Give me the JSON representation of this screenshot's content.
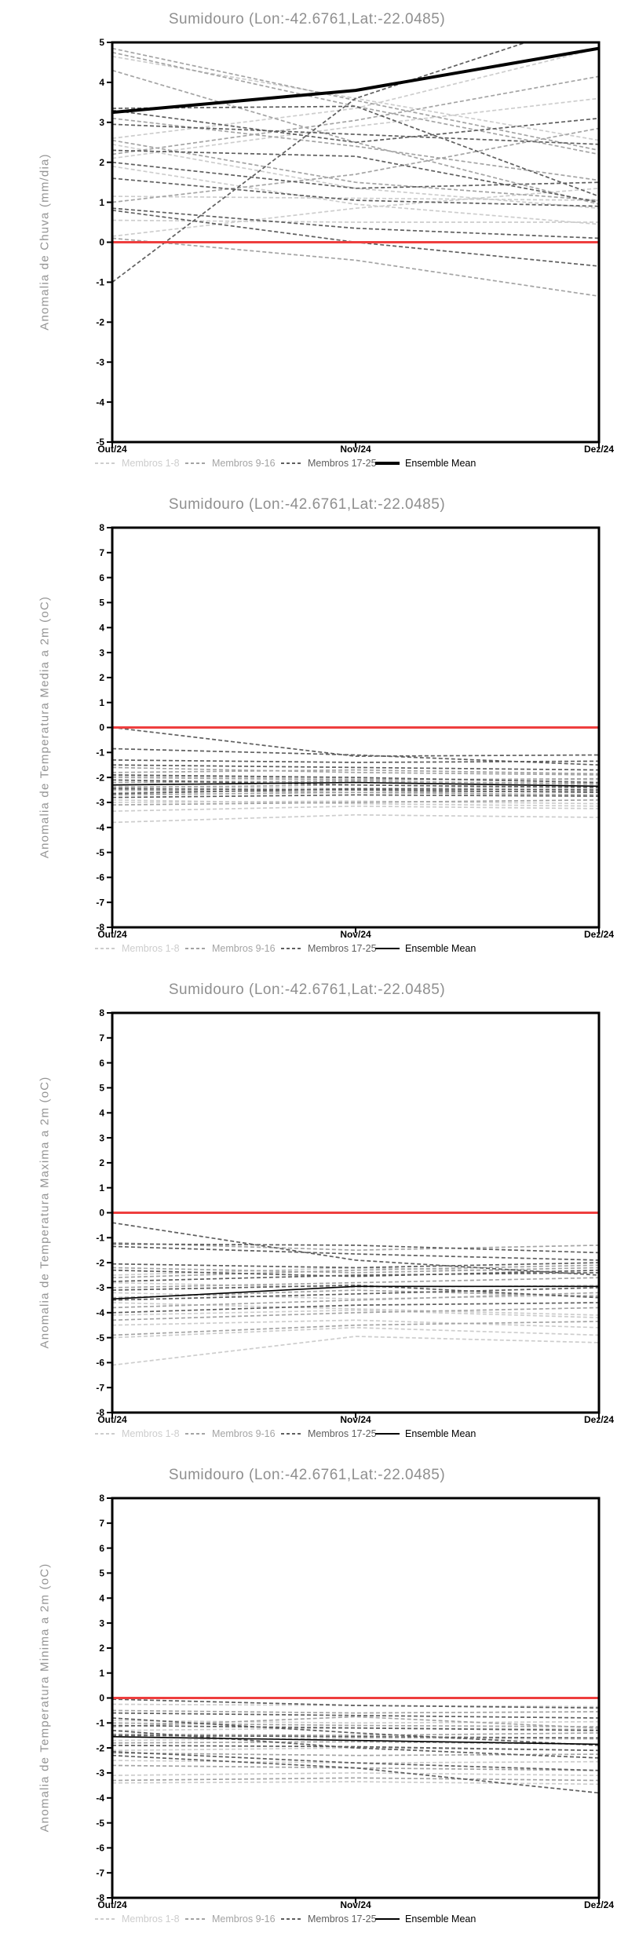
{
  "page_title": "Sumidouro (Lon:-42.6761,Lat:-22.0485)",
  "colors": {
    "members_1_8": "#cdcdcd",
    "members_9_16": "#a4a4a4",
    "members_17_25": "#5f5f5f",
    "ensemble_mean": "#000000",
    "zero_line": "#ee3e3e",
    "title_text": "#8f8f8f",
    "axis_label_text": "#949494",
    "tick_text": "#000000"
  },
  "legend": {
    "items": [
      {
        "label": "Membros 1-8",
        "color": "#cdcdcd",
        "style": "dashed"
      },
      {
        "label": "Membros 9-16",
        "color": "#a4a4a4",
        "style": "dashed"
      },
      {
        "label": "Membros 17-25",
        "color": "#5f5f5f",
        "style": "dashed"
      },
      {
        "label": "Ensemble Mean",
        "color": "#000000",
        "style": "solid"
      }
    ]
  },
  "chart_data": [
    {
      "type": "line",
      "title": "Sumidouro (Lon:-42.6761,Lat:-22.0485)",
      "ylabel": "Anomalia de Chuva (mm/dia)",
      "ylim": [
        -5,
        5
      ],
      "ytick_step": 1,
      "categories": [
        "Out/24",
        "Nov/24",
        "Dez/24"
      ],
      "zero_line": 0,
      "grid": false,
      "legend_position": "bottom",
      "series": [
        {
          "name": "Membros 1-8",
          "style": "dashed",
          "color": "#cdcdcd",
          "width": 1.7,
          "lines": [
            [
              4.65,
              3.6,
              2.55
            ],
            [
              2.6,
              3.35,
              4.85
            ],
            [
              2.1,
              2.9,
              3.6
            ],
            [
              2.45,
              1.35,
              0.85
            ],
            [
              1.15,
              1.1,
              1.05
            ],
            [
              1.9,
              0.95,
              0.45
            ],
            [
              0.55,
              0.5,
              0.5
            ],
            [
              0.15,
              0.85,
              1.35
            ]
          ]
        },
        {
          "name": "Membros 9-16",
          "style": "dashed",
          "color": "#a4a4a4",
          "width": 1.7,
          "lines": [
            [
              4.85,
              3.55,
              2.3
            ],
            [
              4.75,
              3.4,
              2.2
            ],
            [
              4.3,
              2.5,
              0.95
            ],
            [
              3.1,
              2.4,
              1.55
            ],
            [
              2.2,
              3.05,
              4.15
            ],
            [
              1.0,
              1.7,
              2.85
            ],
            [
              2.55,
              1.5,
              1.05
            ],
            [
              0.1,
              -0.45,
              -1.35
            ]
          ]
        },
        {
          "name": "Membros 17-25",
          "style": "dashed",
          "color": "#5f5f5f",
          "width": 1.7,
          "lines": [
            [
              -1.0,
              3.6,
              5.6
            ],
            [
              3.35,
              3.4,
              1.15
            ],
            [
              2.95,
              2.7,
              2.45
            ],
            [
              2.3,
              2.15,
              1.0
            ],
            [
              3.3,
              2.5,
              3.1
            ],
            [
              0.85,
              0.35,
              0.1
            ],
            [
              1.6,
              1.05,
              0.9
            ],
            [
              0.8,
              0.0,
              -0.6
            ],
            [
              2.0,
              1.35,
              1.5
            ]
          ]
        },
        {
          "name": "Ensemble Mean",
          "style": "solid",
          "color": "#000000",
          "width": 4,
          "lines": [
            [
              3.25,
              3.8,
              4.85
            ]
          ]
        }
      ]
    },
    {
      "type": "line",
      "title": "Sumidouro (Lon:-42.6761,Lat:-22.0485)",
      "ylabel": "Anomalia de Temperatura Media a 2m (oC)",
      "ylim": [
        -8,
        8
      ],
      "ytick_step": 1,
      "categories": [
        "Out/24",
        "Nov/24",
        "Dez/24"
      ],
      "zero_line": 0,
      "grid": false,
      "legend_position": "bottom",
      "series": [
        {
          "name": "Membros 1-8",
          "style": "dashed",
          "color": "#cdcdcd",
          "width": 1.7,
          "lines": [
            [
              -2.1,
              -2.2,
              -2.3
            ],
            [
              -2.6,
              -2.5,
              -2.45
            ],
            [
              -3.0,
              -2.95,
              -3.05
            ],
            [
              -3.35,
              -3.15,
              -3.25
            ],
            [
              -3.8,
              -3.5,
              -3.6
            ],
            [
              -1.95,
              -2.05,
              -2.1
            ],
            [
              -2.35,
              -2.45,
              -2.35
            ],
            [
              -2.9,
              -3.05,
              -3.15
            ]
          ]
        },
        {
          "name": "Membros 9-16",
          "style": "dashed",
          "color": "#a4a4a4",
          "width": 1.7,
          "lines": [
            [
              -1.6,
              -1.8,
              -1.9
            ],
            [
              -2.0,
              -2.1,
              -2.05
            ],
            [
              -2.4,
              -2.3,
              -2.4
            ],
            [
              -2.7,
              -2.6,
              -2.7
            ],
            [
              -3.1,
              -3.0,
              -2.9
            ],
            [
              -1.8,
              -1.7,
              -1.85
            ],
            [
              -2.5,
              -2.6,
              -2.55
            ],
            [
              -2.2,
              -2.15,
              -2.25
            ]
          ]
        },
        {
          "name": "Membros 17-25",
          "style": "dashed",
          "color": "#5f5f5f",
          "width": 1.7,
          "lines": [
            [
              0.0,
              -1.15,
              -1.1
            ],
            [
              -0.85,
              -1.1,
              -1.5
            ],
            [
              -1.3,
              -1.4,
              -1.35
            ],
            [
              -1.5,
              -1.6,
              -1.7
            ],
            [
              -1.9,
              -2.0,
              -2.2
            ],
            [
              -2.1,
              -2.3,
              -2.4
            ],
            [
              -2.45,
              -2.5,
              -2.6
            ],
            [
              -2.65,
              -2.45,
              -2.5
            ],
            [
              -2.8,
              -2.7,
              -2.75
            ]
          ]
        },
        {
          "name": "Ensemble Mean",
          "style": "solid",
          "color": "#000000",
          "width": 1.6,
          "lines": [
            [
              -2.3,
              -2.2,
              -2.35
            ]
          ]
        }
      ]
    },
    {
      "type": "line",
      "title": "Sumidouro (Lon:-42.6761,Lat:-22.0485)",
      "ylabel": "Anomalia de Temperatura Maxima a 2m (oC)",
      "ylim": [
        -8,
        8
      ],
      "ytick_step": 1,
      "categories": [
        "Out/24",
        "Nov/24",
        "Dez/24"
      ],
      "zero_line": 0,
      "grid": false,
      "legend_position": "bottom",
      "series": [
        {
          "name": "Membros 1-8",
          "style": "dashed",
          "color": "#cdcdcd",
          "width": 1.7,
          "lines": [
            [
              -2.5,
              -2.2,
              -2.4
            ],
            [
              -3.2,
              -3.45,
              -3.3
            ],
            [
              -4.5,
              -4.3,
              -4.6
            ],
            [
              -5.0,
              -4.6,
              -4.9
            ],
            [
              -6.1,
              -4.95,
              -5.2
            ],
            [
              -3.6,
              -3.85,
              -4.1
            ],
            [
              -2.8,
              -3.0,
              -2.9
            ],
            [
              -4.1,
              -3.9,
              -4.2
            ]
          ]
        },
        {
          "name": "Membros 9-16",
          "style": "dashed",
          "color": "#a4a4a4",
          "width": 1.7,
          "lines": [
            [
              -1.2,
              -1.5,
              -1.3
            ],
            [
              -2.2,
              -2.4,
              -2.2
            ],
            [
              -2.6,
              -2.3,
              -2.1
            ],
            [
              -3.0,
              -2.8,
              -2.6
            ],
            [
              -3.4,
              -3.1,
              -3.35
            ],
            [
              -3.8,
              -3.5,
              -3.2
            ],
            [
              -4.3,
              -4.0,
              -3.8
            ],
            [
              -4.9,
              -4.5,
              -4.35
            ]
          ]
        },
        {
          "name": "Membros 17-25",
          "style": "dashed",
          "color": "#5f5f5f",
          "width": 1.7,
          "lines": [
            [
              -0.4,
              -1.9,
              -2.5
            ],
            [
              -1.25,
              -1.3,
              -1.6
            ],
            [
              -1.35,
              -1.65,
              -1.9
            ],
            [
              -2.05,
              -2.2,
              -2.0
            ],
            [
              -2.3,
              -2.55,
              -2.3
            ],
            [
              -2.75,
              -2.5,
              -2.4
            ],
            [
              -3.1,
              -2.9,
              -3.4
            ],
            [
              -3.5,
              -3.25,
              -3.0
            ],
            [
              -4.0,
              -3.7,
              -3.6
            ]
          ]
        },
        {
          "name": "Ensemble Mean",
          "style": "solid",
          "color": "#000000",
          "width": 1.6,
          "lines": [
            [
              -3.45,
              -2.95,
              -2.95
            ]
          ]
        }
      ]
    },
    {
      "type": "line",
      "title": "Sumidouro (Lon:-42.6761,Lat:-22.0485)",
      "ylabel": "Anomalia de Temperatura Minima a 2m (oC)",
      "ylim": [
        -8,
        8
      ],
      "ytick_step": 1,
      "categories": [
        "Out/24",
        "Nov/24",
        "Dez/24"
      ],
      "zero_line": 0,
      "grid": false,
      "legend_position": "bottom",
      "series": [
        {
          "name": "Membros 1-8",
          "style": "dashed",
          "color": "#cdcdcd",
          "width": 1.7,
          "lines": [
            [
              -0.25,
              -0.3,
              -0.35
            ],
            [
              -0.9,
              -1.0,
              -0.95
            ],
            [
              -1.3,
              -1.2,
              -1.25
            ],
            [
              -1.7,
              -1.6,
              -1.65
            ],
            [
              -2.1,
              -2.0,
              -2.1
            ],
            [
              -2.5,
              -2.6,
              -2.55
            ],
            [
              -3.1,
              -3.0,
              -3.1
            ],
            [
              -3.4,
              -3.35,
              -3.45
            ]
          ]
        },
        {
          "name": "Membros 9-16",
          "style": "dashed",
          "color": "#a4a4a4",
          "width": 1.7,
          "lines": [
            [
              -0.5,
              -0.6,
              -0.55
            ],
            [
              -1.0,
              -1.1,
              -1.15
            ],
            [
              -1.45,
              -1.5,
              -1.4
            ],
            [
              -1.8,
              -1.75,
              -1.85
            ],
            [
              -2.2,
              -2.3,
              -2.25
            ],
            [
              -2.7,
              -2.8,
              -2.9
            ],
            [
              -1.15,
              -0.75,
              -1.2
            ],
            [
              -3.3,
              -3.2,
              -3.3
            ]
          ]
        },
        {
          "name": "Membros 17-25",
          "style": "dashed",
          "color": "#5f5f5f",
          "width": 1.7,
          "lines": [
            [
              -0.05,
              -0.3,
              -0.4
            ],
            [
              -0.6,
              -0.7,
              -0.8
            ],
            [
              -1.1,
              -1.2,
              -1.3
            ],
            [
              -1.5,
              -1.55,
              -1.6
            ],
            [
              -1.9,
              -1.95,
              -2.1
            ],
            [
              -2.15,
              -2.6,
              -2.9
            ],
            [
              -1.3,
              -2.0,
              -2.4
            ],
            [
              -2.3,
              -2.8,
              -3.8
            ],
            [
              -0.8,
              -1.4,
              -1.9
            ]
          ]
        },
        {
          "name": "Ensemble Mean",
          "style": "solid",
          "color": "#000000",
          "width": 1.6,
          "lines": [
            [
              -1.55,
              -1.7,
              -1.85
            ]
          ]
        }
      ]
    }
  ]
}
